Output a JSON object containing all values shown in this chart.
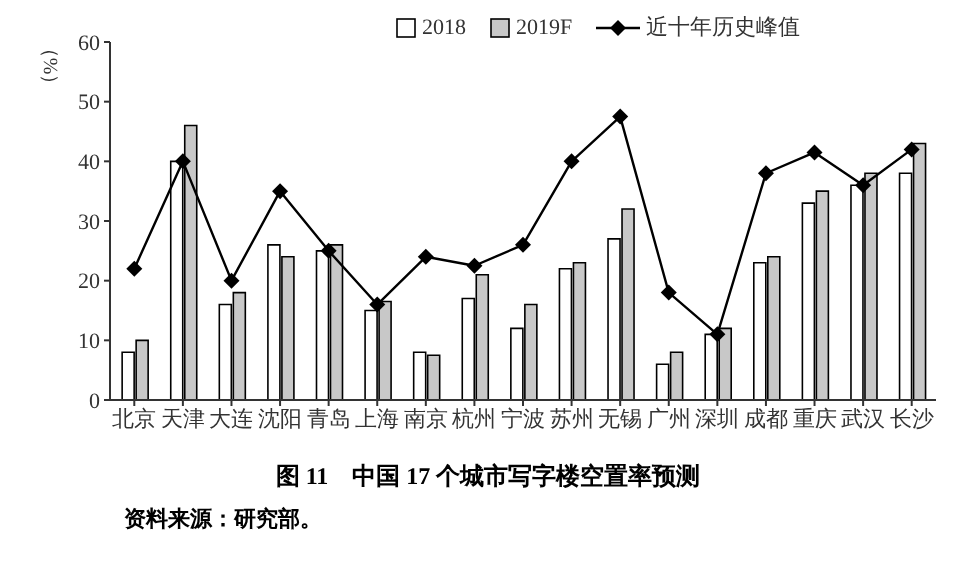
{
  "chart_data": {
    "type": "bar",
    "title": "图 11　中国 17 个城市写字楼空置率预测",
    "ylabel": "（%）",
    "annotations": [
      "资料来源：研究部。"
    ],
    "categories": [
      "北京",
      "天津",
      "大连",
      "沈阳",
      "青岛",
      "上海",
      "南京",
      "杭州",
      "宁波",
      "苏州",
      "无锡",
      "广州",
      "深圳",
      "成都",
      "重庆",
      "武汉",
      "长沙"
    ],
    "series": [
      {
        "name": "2018",
        "color": "#ffffff",
        "values": [
          8,
          40,
          16,
          26,
          25,
          15,
          8,
          17,
          12,
          22,
          27,
          6,
          11,
          23,
          33,
          36,
          38
        ]
      },
      {
        "name": "2019F",
        "color": "#c8c8c8",
        "values": [
          10,
          46,
          18,
          24,
          26,
          16.5,
          7.5,
          21,
          16,
          23,
          32,
          8,
          12,
          24,
          35,
          38,
          43
        ]
      },
      {
        "name": "近十年历史峰值",
        "type": "line",
        "color": "#000000",
        "marker": "diamond",
        "values": [
          22,
          40,
          20,
          35,
          25,
          16,
          24,
          22.5,
          26,
          40,
          47.5,
          18,
          11,
          38,
          41.5,
          36,
          42
        ]
      }
    ],
    "ylim": [
      0,
      60
    ],
    "yticks": [
      0,
      10,
      20,
      30,
      40,
      50,
      60
    ],
    "grid": false,
    "legend": "top"
  }
}
